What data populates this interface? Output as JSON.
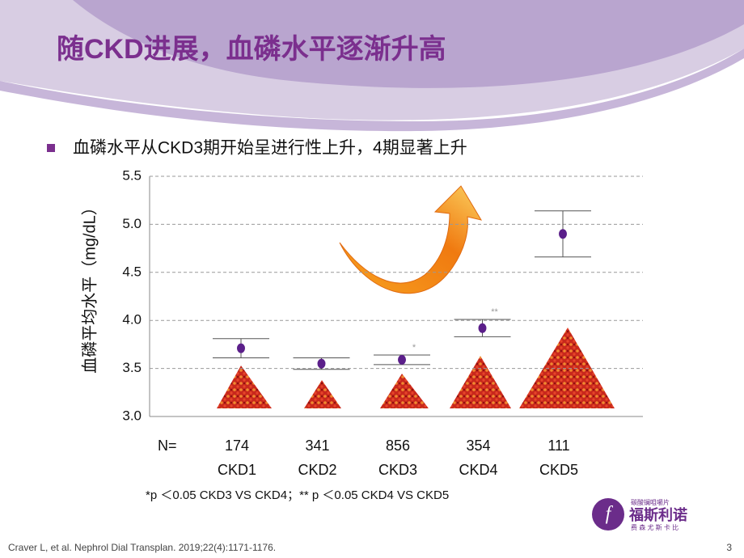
{
  "title": "随CKD进展，血磷水平逐渐升高",
  "bullet": "血磷水平从CKD3期开始呈进行性上升，4期显著上升",
  "chart_data": {
    "type": "errorbar",
    "y_label": "血磷平均水平（mg/dL）",
    "categories": [
      "CKD1",
      "CKD2",
      "CKD3",
      "CKD4",
      "CKD5"
    ],
    "values": [
      3.71,
      3.55,
      3.59,
      3.92,
      4.9
    ],
    "errors": [
      0.1,
      0.06,
      0.05,
      0.09,
      0.24
    ],
    "color": "#5b1f8a",
    "n_label": "N=",
    "counts": [
      174,
      341,
      856,
      354,
      111
    ],
    "significance": [
      null,
      null,
      "*",
      "**",
      null
    ],
    "ylim": [
      3.0,
      5.5
    ],
    "yticks": [
      {
        "value": 3.0,
        "label": "3.0"
      },
      {
        "value": 3.5,
        "label": "3.5"
      },
      {
        "value": 4.0,
        "label": "4.0"
      },
      {
        "value": 4.5,
        "label": "4.5"
      },
      {
        "value": 5.0,
        "label": "5.0"
      },
      {
        "value": 5.5,
        "label": "5.5"
      }
    ],
    "grid": true
  },
  "footnote": "*p ＜0.05  CKD3 VS CKD4；** p ＜0.05  CKD4 VS CKD5",
  "citation": "Craver L, et al. Nephrol Dial Transplan. 2019;22(4):1171-1176.",
  "page_number": "3",
  "logo": {
    "name": "福斯利诺",
    "tagline": "碳酸镧咀嚼片",
    "subtitle": "费 森 尤 斯 卡 比"
  }
}
